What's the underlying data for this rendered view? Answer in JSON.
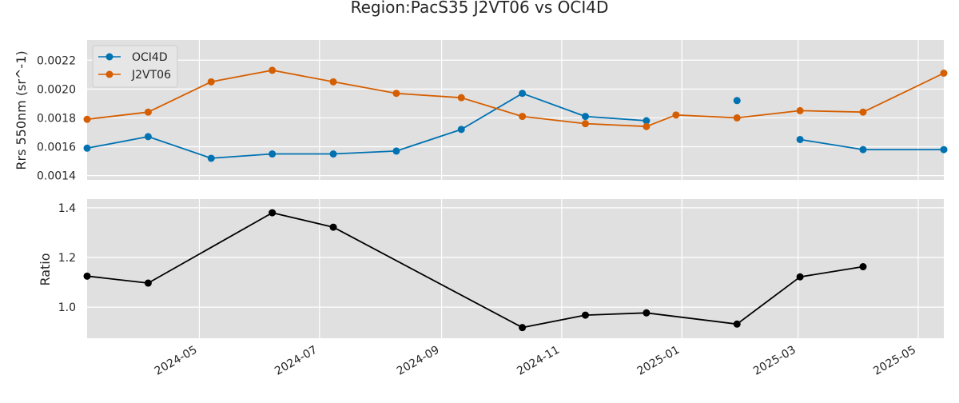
{
  "chart_data": [
    {
      "type": "line",
      "title": "Region:PacS35 J2VT06 vs OCI4D",
      "ylabel": "Rrs 550nm (sr^-1)",
      "xlim": [
        "2024-03-05",
        "2025-05-14"
      ],
      "ylim": [
        0.00137,
        0.00234
      ],
      "yticks": [
        0.0014,
        0.0016,
        0.0018,
        0.002,
        0.0022
      ],
      "ytick_labels": [
        "0.0014",
        "0.0016",
        "0.0018",
        "0.0020",
        "0.0022"
      ],
      "grid": true,
      "legend": "top-left",
      "series": [
        {
          "name": "OCI4D",
          "color": "#0072b2",
          "x": [
            "2024-03-05",
            "2024-04-05",
            "2024-05-07",
            "2024-06-07",
            "2024-07-08",
            "2024-08-09",
            "2024-09-11",
            "2024-10-12",
            "2024-11-13",
            "2024-12-14",
            "2025-01-29",
            "2025-03-02",
            "2025-04-03",
            "2025-05-14"
          ],
          "y": [
            0.00159,
            0.00167,
            0.00152,
            0.00155,
            0.00155,
            0.00157,
            0.00172,
            0.00197,
            0.00181,
            0.00178,
            null,
            0.00165,
            0.00158,
            0.00158
          ]
        },
        {
          "name": "J2VT06",
          "color": "#d55e00",
          "x": [
            "2024-03-05",
            "2024-04-05",
            "2024-05-07",
            "2024-06-07",
            "2024-07-08",
            "2024-08-09",
            "2024-09-11",
            "2024-10-12",
            "2024-11-13",
            "2024-12-14",
            "2024-12-29",
            "2025-01-29",
            "2025-03-02",
            "2025-04-03",
            "2025-05-14"
          ],
          "y": [
            0.00179,
            0.00184,
            0.00205,
            0.00213,
            0.00205,
            0.00197,
            0.00194,
            0.00181,
            0.00176,
            0.00174,
            0.00182,
            0.0018,
            0.00185,
            0.00184,
            0.00211
          ]
        }
      ],
      "extra_points": [
        {
          "series": "OCI4D",
          "x": "2025-01-29",
          "y": 0.00192
        }
      ]
    },
    {
      "type": "line",
      "ylabel": "Ratio",
      "xlim": [
        "2024-03-05",
        "2025-05-14"
      ],
      "ylim": [
        0.875,
        1.435
      ],
      "yticks": [
        1.0,
        1.2,
        1.4
      ],
      "ytick_labels": [
        "1.0",
        "1.2",
        "1.4"
      ],
      "xticks": [
        "2024-05-01",
        "2024-07-01",
        "2024-09-01",
        "2024-11-01",
        "2025-01-01",
        "2025-03-01",
        "2025-05-01"
      ],
      "xtick_labels": [
        "2024-05",
        "2024-07",
        "2024-09",
        "2024-11",
        "2025-01",
        "2025-03",
        "2025-05"
      ],
      "grid": true,
      "series": [
        {
          "color": "#000000",
          "x": [
            "2024-03-05",
            "2024-04-05",
            "2024-06-07",
            "2024-07-08",
            "2024-10-12",
            "2024-11-13",
            "2024-12-14",
            "2025-01-29",
            "2025-03-02",
            "2025-04-03"
          ],
          "y": [
            1.125,
            1.097,
            1.38,
            1.322,
            0.918,
            0.968,
            0.977,
            0.932,
            1.122,
            1.163
          ]
        }
      ]
    }
  ]
}
